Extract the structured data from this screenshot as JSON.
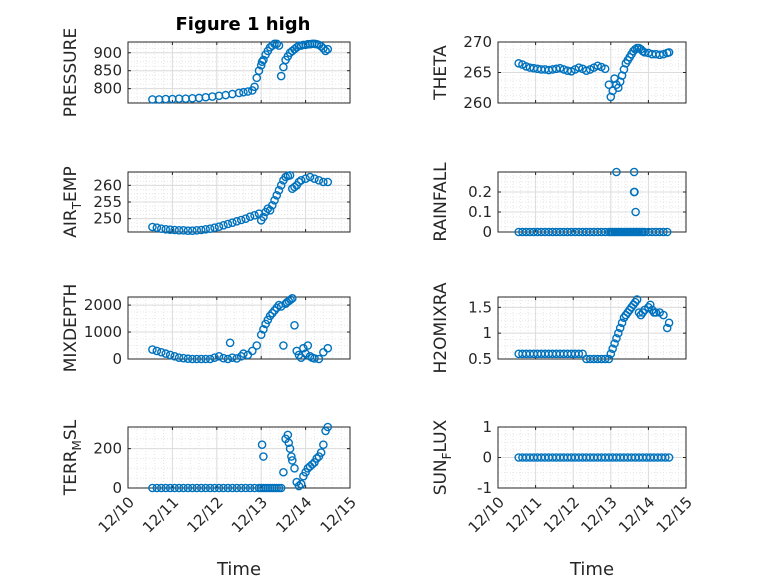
{
  "figure_title": "Figure 1 high",
  "colors": {
    "marker": "#0072BD",
    "axis": "#262626",
    "grid": "#dcdcdc"
  },
  "chart_data": [
    {
      "type": "scatter",
      "panel": "pressure",
      "ylabel": "PRESSURE",
      "xlabel": "",
      "title": "Figure 1 high",
      "xlim": [
        10,
        15
      ],
      "ylim": [
        760,
        930
      ],
      "yticks": [
        800,
        850,
        900
      ],
      "yticklabels": [
        "800",
        "850",
        "900"
      ],
      "xticks": [
        10,
        11,
        12,
        13,
        14,
        15
      ],
      "xticklabels": [],
      "x": [
        10.55,
        10.7,
        10.85,
        11.0,
        11.15,
        11.3,
        11.45,
        11.6,
        11.75,
        11.9,
        12.05,
        12.2,
        12.35,
        12.5,
        12.6,
        12.7,
        12.8,
        12.85,
        12.9,
        12.95,
        13.0,
        13.02,
        13.05,
        13.1,
        13.15,
        13.2,
        13.25,
        13.3,
        13.35,
        13.4,
        13.45,
        13.5,
        13.55,
        13.6,
        13.65,
        13.7,
        13.75,
        13.8,
        13.85,
        13.9,
        13.95,
        14.0,
        14.05,
        14.1,
        14.15,
        14.2,
        14.25,
        14.3,
        14.35,
        14.4,
        14.45,
        14.5
      ],
      "y": [
        770,
        770,
        771,
        771,
        772,
        772,
        773,
        774,
        776,
        778,
        780,
        782,
        785,
        788,
        790,
        792,
        795,
        805,
        830,
        850,
        865,
        875,
        880,
        895,
        905,
        915,
        920,
        925,
        925,
        920,
        835,
        860,
        880,
        890,
        900,
        905,
        910,
        915,
        920,
        920,
        922,
        922,
        924,
        924,
        925,
        925,
        924,
        922,
        918,
        912,
        905,
        910
      ]
    },
    {
      "type": "scatter",
      "panel": "theta",
      "ylabel": "THETA",
      "xlabel": "",
      "xlim": [
        10,
        15
      ],
      "ylim": [
        260,
        270
      ],
      "yticks": [
        260,
        265,
        270
      ],
      "yticklabels": [
        "260",
        "265",
        "270"
      ],
      "xticks": [
        10,
        11,
        12,
        13,
        14,
        15
      ],
      "xticklabels": [],
      "x": [
        10.55,
        10.65,
        10.75,
        10.85,
        10.95,
        11.05,
        11.15,
        11.25,
        11.35,
        11.45,
        11.55,
        11.65,
        11.75,
        11.85,
        11.95,
        12.05,
        12.15,
        12.25,
        12.35,
        12.45,
        12.55,
        12.65,
        12.75,
        12.85,
        12.95,
        13.0,
        13.05,
        13.1,
        13.15,
        13.2,
        13.25,
        13.3,
        13.35,
        13.4,
        13.45,
        13.5,
        13.55,
        13.6,
        13.65,
        13.7,
        13.75,
        13.8,
        13.85,
        13.9,
        14.0,
        14.1,
        14.2,
        14.3,
        14.4,
        14.5,
        14.55
      ],
      "y": [
        266.5,
        266.3,
        266.0,
        265.8,
        265.7,
        265.6,
        265.5,
        265.5,
        265.4,
        265.5,
        265.6,
        265.7,
        265.5,
        265.3,
        265.2,
        265.5,
        265.8,
        265.6,
        265.3,
        265.5,
        265.8,
        266.1,
        265.9,
        265.6,
        263.0,
        261.0,
        262.0,
        264.0,
        263.0,
        262.5,
        263.5,
        264.5,
        265.5,
        266.5,
        267.0,
        267.5,
        268.0,
        268.5,
        268.8,
        269.0,
        269.0,
        268.8,
        268.5,
        268.3,
        268.2,
        268.0,
        268.0,
        267.9,
        268.0,
        268.2,
        268.3
      ]
    },
    {
      "type": "scatter",
      "panel": "air_temp",
      "ylabel": "AIR_TEMP",
      "xlabel": "",
      "xlim": [
        10,
        15
      ],
      "ylim": [
        246,
        264
      ],
      "yticks": [
        250,
        255,
        260
      ],
      "yticklabels": [
        "250",
        "255",
        "260"
      ],
      "xticks": [
        10,
        11,
        12,
        13,
        14,
        15
      ],
      "xticklabels": [],
      "x": [
        10.55,
        10.65,
        10.75,
        10.85,
        10.95,
        11.05,
        11.15,
        11.25,
        11.35,
        11.45,
        11.55,
        11.65,
        11.75,
        11.85,
        11.95,
        12.05,
        12.15,
        12.25,
        12.35,
        12.45,
        12.55,
        12.65,
        12.75,
        12.85,
        12.95,
        13.0,
        13.05,
        13.1,
        13.15,
        13.2,
        13.25,
        13.3,
        13.35,
        13.4,
        13.45,
        13.5,
        13.55,
        13.6,
        13.65,
        13.7,
        13.75,
        13.8,
        13.85,
        13.9,
        14.0,
        14.1,
        14.2,
        14.3,
        14.4,
        14.5
      ],
      "y": [
        247.5,
        247.3,
        247.0,
        246.8,
        246.7,
        246.6,
        246.5,
        246.5,
        246.4,
        246.4,
        246.5,
        246.6,
        246.8,
        247.0,
        247.3,
        247.6,
        248.0,
        248.4,
        248.8,
        249.2,
        249.6,
        250.0,
        250.6,
        251.0,
        251.5,
        249.5,
        250.5,
        252.0,
        253.0,
        252.5,
        254.0,
        255.5,
        257.0,
        258.5,
        260.0,
        261.5,
        262.5,
        262.8,
        263.0,
        259.0,
        259.5,
        260.0,
        261.0,
        261.5,
        262.0,
        262.5,
        262.0,
        261.5,
        261.0,
        261.0
      ]
    },
    {
      "type": "scatter",
      "panel": "rainfall",
      "ylabel": "RAINFALL",
      "xlabel": "",
      "xlim": [
        10,
        15
      ],
      "ylim": [
        0,
        0.3
      ],
      "yticks": [
        0,
        0.1,
        0.2
      ],
      "yticklabels": [
        "0",
        "0.1",
        "0.2"
      ],
      "xticks": [
        10,
        11,
        12,
        13,
        14,
        15
      ],
      "xticklabels": [],
      "x": [
        10.55,
        10.65,
        10.75,
        10.85,
        10.95,
        11.05,
        11.15,
        11.25,
        11.35,
        11.45,
        11.55,
        11.65,
        11.75,
        11.85,
        11.95,
        12.05,
        12.15,
        12.25,
        12.35,
        12.45,
        12.55,
        12.65,
        12.75,
        12.85,
        12.95,
        13.0,
        13.05,
        13.1,
        13.15,
        13.2,
        13.25,
        13.3,
        13.35,
        13.4,
        13.45,
        13.5,
        13.55,
        13.6,
        13.65,
        13.7,
        13.75,
        13.8,
        13.85,
        13.9,
        14.0,
        14.1,
        14.2,
        14.3,
        14.4,
        14.5,
        13.15,
        13.62,
        13.62,
        13.63,
        13.66
      ],
      "y": [
        0,
        0,
        0,
        0,
        0,
        0,
        0,
        0,
        0,
        0,
        0,
        0,
        0,
        0,
        0,
        0,
        0,
        0,
        0,
        0,
        0,
        0,
        0,
        0,
        0,
        0,
        0,
        0,
        0,
        0,
        0,
        0,
        0,
        0,
        0,
        0,
        0,
        0,
        0,
        0,
        0,
        0,
        0,
        0,
        0,
        0,
        0,
        0,
        0,
        0,
        0.3,
        0.3,
        0.2,
        0.2,
        0.1
      ]
    },
    {
      "type": "scatter",
      "panel": "mixdepth",
      "ylabel": "MIXDEPTH",
      "xlabel": "",
      "xlim": [
        10,
        15
      ],
      "ylim": [
        0,
        2300
      ],
      "yticks": [
        0,
        1000,
        2000
      ],
      "yticklabels": [
        "0",
        "1000",
        "2000"
      ],
      "xticks": [
        10,
        11,
        12,
        13,
        14,
        15
      ],
      "xticklabels": [],
      "x": [
        10.55,
        10.65,
        10.75,
        10.85,
        10.95,
        11.05,
        11.15,
        11.25,
        11.35,
        11.45,
        11.55,
        11.65,
        11.75,
        11.85,
        11.95,
        12.05,
        12.15,
        12.25,
        12.3,
        12.35,
        12.45,
        12.55,
        12.6,
        12.7,
        12.8,
        12.9,
        13.0,
        13.05,
        13.1,
        13.15,
        13.2,
        13.25,
        13.3,
        13.35,
        13.4,
        13.45,
        13.5,
        13.55,
        13.58,
        13.62,
        13.66,
        13.7,
        13.75,
        13.8,
        13.85,
        13.9,
        13.95,
        14.0,
        14.05,
        14.1,
        14.15,
        14.2,
        14.3,
        14.4,
        14.5
      ],
      "y": [
        350,
        300,
        250,
        200,
        150,
        100,
        50,
        30,
        10,
        0,
        0,
        0,
        0,
        0,
        50,
        100,
        30,
        0,
        600,
        50,
        20,
        100,
        200,
        150,
        300,
        500,
        900,
        1100,
        1300,
        1450,
        1600,
        1700,
        1800,
        1900,
        2000,
        1950,
        500,
        2050,
        2100,
        2150,
        2200,
        2250,
        1250,
        300,
        150,
        50,
        400,
        200,
        500,
        100,
        50,
        20,
        0,
        250,
        400
      ]
    },
    {
      "type": "scatter",
      "panel": "h2omixra",
      "ylabel": "H2OMIXRA",
      "xlabel": "",
      "xlim": [
        10,
        15
      ],
      "ylim": [
        0.5,
        1.7
      ],
      "yticks": [
        0.5,
        1,
        1.5
      ],
      "yticklabels": [
        "0.5",
        "1",
        "1.5"
      ],
      "xticks": [
        10,
        11,
        12,
        13,
        14,
        15
      ],
      "xticklabels": [],
      "x": [
        10.55,
        10.65,
        10.75,
        10.85,
        10.95,
        11.05,
        11.15,
        11.25,
        11.35,
        11.45,
        11.55,
        11.65,
        11.75,
        11.85,
        11.95,
        12.05,
        12.15,
        12.25,
        12.35,
        12.45,
        12.55,
        12.65,
        12.75,
        12.85,
        12.95,
        13.0,
        13.05,
        13.1,
        13.15,
        13.2,
        13.25,
        13.3,
        13.35,
        13.4,
        13.45,
        13.5,
        13.55,
        13.6,
        13.65,
        13.7,
        13.75,
        13.8,
        13.85,
        13.9,
        14.0,
        14.05,
        14.1,
        14.15,
        14.2,
        14.3,
        14.4,
        14.5,
        14.55
      ],
      "y": [
        0.6,
        0.6,
        0.6,
        0.6,
        0.6,
        0.6,
        0.6,
        0.6,
        0.6,
        0.6,
        0.6,
        0.6,
        0.6,
        0.6,
        0.6,
        0.6,
        0.6,
        0.6,
        0.5,
        0.5,
        0.5,
        0.5,
        0.5,
        0.5,
        0.5,
        0.6,
        0.7,
        0.8,
        0.9,
        1.0,
        1.1,
        1.2,
        1.3,
        1.35,
        1.4,
        1.45,
        1.5,
        1.55,
        1.6,
        1.65,
        1.4,
        1.35,
        1.4,
        1.45,
        1.5,
        1.55,
        1.45,
        1.4,
        1.4,
        1.4,
        1.35,
        1.1,
        1.2
      ]
    },
    {
      "type": "scatter",
      "panel": "terr_msl",
      "ylabel": "TERR_MSL",
      "xlabel": "Time",
      "xlim": [
        10,
        15
      ],
      "ylim": [
        0,
        310
      ],
      "yticks": [
        0,
        200
      ],
      "yticklabels": [
        "0",
        "200"
      ],
      "xticks": [
        10,
        11,
        12,
        13,
        14,
        15
      ],
      "xticklabels": [
        "12/10",
        "12/11",
        "12/12",
        "12/13",
        "12/14",
        "12/15"
      ],
      "x": [
        10.55,
        10.65,
        10.75,
        10.85,
        10.95,
        11.05,
        11.15,
        11.25,
        11.35,
        11.45,
        11.55,
        11.65,
        11.75,
        11.85,
        11.95,
        12.05,
        12.15,
        12.25,
        12.35,
        12.45,
        12.55,
        12.65,
        12.75,
        12.85,
        12.95,
        13.0,
        13.05,
        13.1,
        13.15,
        13.2,
        13.25,
        13.3,
        13.35,
        13.4,
        13.45,
        13.5,
        13.55,
        13.6,
        13.62,
        13.65,
        13.68,
        13.7,
        13.75,
        13.8,
        13.85,
        13.9,
        13.95,
        14.0,
        14.05,
        14.1,
        14.15,
        14.2,
        14.25,
        14.3,
        14.35,
        14.4,
        14.45,
        14.5,
        13.02,
        13.05
      ],
      "y": [
        0,
        0,
        0,
        0,
        0,
        0,
        0,
        0,
        0,
        0,
        0,
        0,
        0,
        0,
        0,
        0,
        0,
        0,
        0,
        0,
        0,
        0,
        0,
        0,
        0,
        0,
        0,
        0,
        0,
        0,
        0,
        0,
        0,
        0,
        0,
        80,
        250,
        270,
        230,
        200,
        160,
        140,
        100,
        30,
        10,
        20,
        60,
        80,
        100,
        110,
        120,
        130,
        150,
        160,
        180,
        220,
        290,
        310,
        220,
        160
      ]
    },
    {
      "type": "scatter",
      "panel": "sun_flux",
      "ylabel": "SUN_FLUX",
      "xlabel": "Time",
      "xlim": [
        10,
        15
      ],
      "ylim": [
        -1,
        1
      ],
      "yticks": [
        -1,
        0,
        1
      ],
      "yticklabels": [
        "-1",
        "0",
        "1"
      ],
      "xticks": [
        10,
        11,
        12,
        13,
        14,
        15
      ],
      "xticklabels": [
        "12/10",
        "12/11",
        "12/12",
        "12/13",
        "12/14",
        "12/15"
      ],
      "x": [
        10.55,
        10.65,
        10.75,
        10.85,
        10.95,
        11.05,
        11.15,
        11.25,
        11.35,
        11.45,
        11.55,
        11.65,
        11.75,
        11.85,
        11.95,
        12.05,
        12.15,
        12.25,
        12.35,
        12.45,
        12.55,
        12.65,
        12.75,
        12.85,
        12.95,
        13.05,
        13.15,
        13.25,
        13.35,
        13.45,
        13.55,
        13.65,
        13.75,
        13.85,
        13.95,
        14.05,
        14.15,
        14.25,
        14.35,
        14.45,
        14.55
      ],
      "y": [
        0,
        0,
        0,
        0,
        0,
        0,
        0,
        0,
        0,
        0,
        0,
        0,
        0,
        0,
        0,
        0,
        0,
        0,
        0,
        0,
        0,
        0,
        0,
        0,
        0,
        0,
        0,
        0,
        0,
        0,
        0,
        0,
        0,
        0,
        0,
        0,
        0,
        0,
        0,
        0,
        0
      ]
    }
  ]
}
